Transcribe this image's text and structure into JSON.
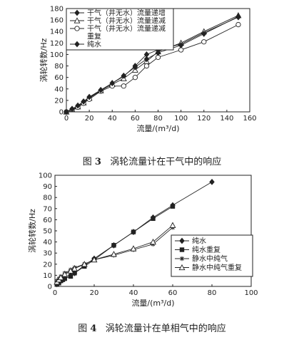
{
  "figure3": {
    "caption_prefix": "图",
    "caption_number": "3",
    "caption_text": "涡轮流量计在干气中的响应"
  },
  "figure4": {
    "caption_prefix": "图",
    "caption_number": "4",
    "caption_text": "涡轮流量计在单相气中的响应"
  },
  "chart_data": [
    {
      "type": "line",
      "xlabel": "流量/(m³/d)",
      "ylabel": "涡轮转数/Hz",
      "xlim": [
        0,
        160
      ],
      "ylim": [
        0,
        180
      ],
      "xticks": [
        0,
        20,
        40,
        60,
        80,
        100,
        120,
        140,
        160
      ],
      "yticks": [
        0,
        20,
        40,
        60,
        80,
        100,
        120,
        140,
        160,
        180
      ],
      "grid": false,
      "legend_position": "top-left",
      "series": [
        {
          "name": "干气（井无水）流量递增",
          "marker": "diamond-filled",
          "x": [
            0,
            5,
            10,
            15,
            20,
            30,
            40,
            50,
            60,
            70,
            80,
            100,
            120,
            150
          ],
          "y": [
            0,
            5,
            10,
            18,
            25,
            38,
            50,
            62,
            80,
            100,
            108,
            118,
            138,
            165
          ]
        },
        {
          "name": "干气（井无水）流量递减",
          "marker": "triangle-open",
          "x": [
            0,
            5,
            10,
            15,
            20,
            30,
            40,
            50,
            60,
            70,
            80,
            100,
            120,
            150
          ],
          "y": [
            0,
            4,
            9,
            16,
            24,
            37,
            48,
            58,
            73,
            88,
            105,
            120,
            140,
            168
          ]
        },
        {
          "name": "干气（井无水）流量递减重复",
          "marker": "circle-open",
          "x": [
            0,
            5,
            10,
            15,
            20,
            30,
            40,
            50,
            60,
            70,
            80,
            100,
            120,
            150
          ],
          "y": [
            0,
            4,
            8,
            15,
            22,
            36,
            45,
            45,
            60,
            80,
            95,
            108,
            122,
            152
          ]
        },
        {
          "name": "纯水",
          "marker": "diamond-filled",
          "x": [
            0,
            5,
            10,
            15,
            20,
            30,
            40,
            50,
            60,
            70,
            80,
            100,
            120,
            150
          ],
          "y": [
            0,
            5,
            11,
            18,
            26,
            38,
            50,
            63,
            78,
            92,
            103,
            116,
            136,
            166
          ]
        }
      ]
    },
    {
      "type": "line",
      "xlabel": "流量/(m³/d)",
      "ylabel": "涡轮转数/Hz",
      "xlim": [
        0,
        100
      ],
      "ylim": [
        0,
        100
      ],
      "xticks": [
        0,
        20,
        40,
        60,
        80,
        100
      ],
      "yticks": [
        0,
        10,
        20,
        30,
        40,
        50,
        60,
        70,
        80,
        90,
        100
      ],
      "grid": false,
      "legend_position": "right",
      "series": [
        {
          "name": "纯水",
          "marker": "diamond-filled",
          "x": [
            1,
            2,
            3,
            4,
            5,
            8,
            10,
            15,
            20,
            30,
            40,
            50,
            60,
            80
          ],
          "y": [
            2,
            4,
            5,
            6,
            8,
            10,
            12,
            19,
            25,
            37,
            49,
            62,
            73,
            94
          ]
        },
        {
          "name": "纯水重复",
          "marker": "square-filled",
          "x": [
            1,
            2,
            3,
            4,
            5,
            8,
            10,
            15,
            20,
            30,
            40,
            50,
            60
          ],
          "y": [
            2,
            3,
            5,
            6,
            7,
            9,
            12,
            18,
            24,
            37,
            49,
            61,
            72
          ]
        },
        {
          "name": "静水中纯气",
          "marker": "star",
          "x": [
            1,
            2,
            3,
            5,
            8,
            10,
            15,
            20,
            30,
            40,
            50,
            60
          ],
          "y": [
            5,
            7,
            9,
            12,
            15,
            17,
            20,
            24,
            28,
            33,
            38,
            53
          ]
        },
        {
          "name": "静水中纯气重复",
          "marker": "triangle-open",
          "x": [
            1,
            2,
            3,
            5,
            8,
            10,
            15,
            20,
            30,
            40,
            50,
            60
          ],
          "y": [
            4,
            6,
            8,
            11,
            14,
            16,
            20,
            24,
            29,
            34,
            40,
            55
          ]
        }
      ]
    }
  ]
}
